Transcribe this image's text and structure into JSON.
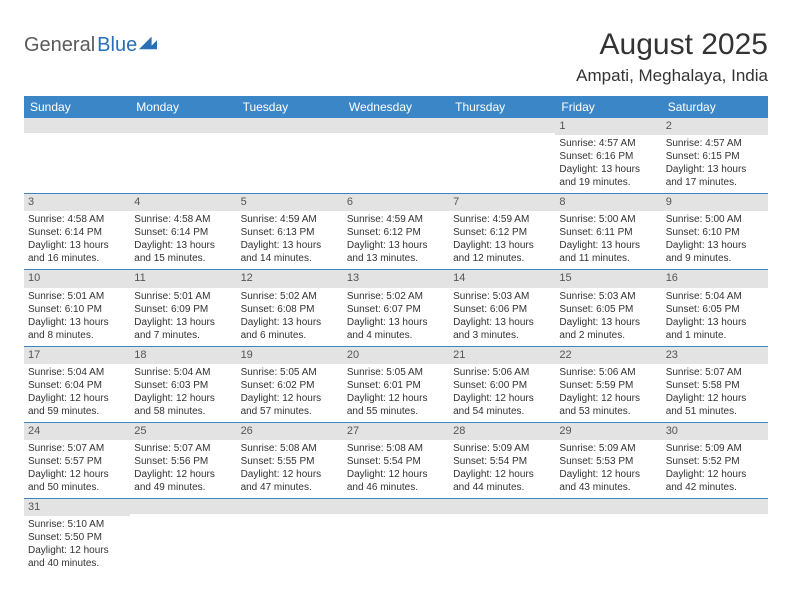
{
  "logo": {
    "word1": "General",
    "word2": "Blue"
  },
  "title": "August 2025",
  "location": "Ampati, Meghalaya, India",
  "colors": {
    "header_bg": "#3b86c6",
    "header_fg": "#ffffff",
    "daynum_bg": "#e3e3e3",
    "daynum_fg": "#555555",
    "rule": "#3b86c6",
    "logo_accent": "#2a6fb5",
    "logo_gray": "#5a5a5a"
  },
  "weekdays": [
    "Sunday",
    "Monday",
    "Tuesday",
    "Wednesday",
    "Thursday",
    "Friday",
    "Saturday"
  ],
  "weeks": [
    [
      {
        "n": "",
        "sr": "",
        "ss": "",
        "dl": ""
      },
      {
        "n": "",
        "sr": "",
        "ss": "",
        "dl": ""
      },
      {
        "n": "",
        "sr": "",
        "ss": "",
        "dl": ""
      },
      {
        "n": "",
        "sr": "",
        "ss": "",
        "dl": ""
      },
      {
        "n": "",
        "sr": "",
        "ss": "",
        "dl": ""
      },
      {
        "n": "1",
        "sr": "Sunrise: 4:57 AM",
        "ss": "Sunset: 6:16 PM",
        "dl": "Daylight: 13 hours and 19 minutes."
      },
      {
        "n": "2",
        "sr": "Sunrise: 4:57 AM",
        "ss": "Sunset: 6:15 PM",
        "dl": "Daylight: 13 hours and 17 minutes."
      }
    ],
    [
      {
        "n": "3",
        "sr": "Sunrise: 4:58 AM",
        "ss": "Sunset: 6:14 PM",
        "dl": "Daylight: 13 hours and 16 minutes."
      },
      {
        "n": "4",
        "sr": "Sunrise: 4:58 AM",
        "ss": "Sunset: 6:14 PM",
        "dl": "Daylight: 13 hours and 15 minutes."
      },
      {
        "n": "5",
        "sr": "Sunrise: 4:59 AM",
        "ss": "Sunset: 6:13 PM",
        "dl": "Daylight: 13 hours and 14 minutes."
      },
      {
        "n": "6",
        "sr": "Sunrise: 4:59 AM",
        "ss": "Sunset: 6:12 PM",
        "dl": "Daylight: 13 hours and 13 minutes."
      },
      {
        "n": "7",
        "sr": "Sunrise: 4:59 AM",
        "ss": "Sunset: 6:12 PM",
        "dl": "Daylight: 13 hours and 12 minutes."
      },
      {
        "n": "8",
        "sr": "Sunrise: 5:00 AM",
        "ss": "Sunset: 6:11 PM",
        "dl": "Daylight: 13 hours and 11 minutes."
      },
      {
        "n": "9",
        "sr": "Sunrise: 5:00 AM",
        "ss": "Sunset: 6:10 PM",
        "dl": "Daylight: 13 hours and 9 minutes."
      }
    ],
    [
      {
        "n": "10",
        "sr": "Sunrise: 5:01 AM",
        "ss": "Sunset: 6:10 PM",
        "dl": "Daylight: 13 hours and 8 minutes."
      },
      {
        "n": "11",
        "sr": "Sunrise: 5:01 AM",
        "ss": "Sunset: 6:09 PM",
        "dl": "Daylight: 13 hours and 7 minutes."
      },
      {
        "n": "12",
        "sr": "Sunrise: 5:02 AM",
        "ss": "Sunset: 6:08 PM",
        "dl": "Daylight: 13 hours and 6 minutes."
      },
      {
        "n": "13",
        "sr": "Sunrise: 5:02 AM",
        "ss": "Sunset: 6:07 PM",
        "dl": "Daylight: 13 hours and 4 minutes."
      },
      {
        "n": "14",
        "sr": "Sunrise: 5:03 AM",
        "ss": "Sunset: 6:06 PM",
        "dl": "Daylight: 13 hours and 3 minutes."
      },
      {
        "n": "15",
        "sr": "Sunrise: 5:03 AM",
        "ss": "Sunset: 6:05 PM",
        "dl": "Daylight: 13 hours and 2 minutes."
      },
      {
        "n": "16",
        "sr": "Sunrise: 5:04 AM",
        "ss": "Sunset: 6:05 PM",
        "dl": "Daylight: 13 hours and 1 minute."
      }
    ],
    [
      {
        "n": "17",
        "sr": "Sunrise: 5:04 AM",
        "ss": "Sunset: 6:04 PM",
        "dl": "Daylight: 12 hours and 59 minutes."
      },
      {
        "n": "18",
        "sr": "Sunrise: 5:04 AM",
        "ss": "Sunset: 6:03 PM",
        "dl": "Daylight: 12 hours and 58 minutes."
      },
      {
        "n": "19",
        "sr": "Sunrise: 5:05 AM",
        "ss": "Sunset: 6:02 PM",
        "dl": "Daylight: 12 hours and 57 minutes."
      },
      {
        "n": "20",
        "sr": "Sunrise: 5:05 AM",
        "ss": "Sunset: 6:01 PM",
        "dl": "Daylight: 12 hours and 55 minutes."
      },
      {
        "n": "21",
        "sr": "Sunrise: 5:06 AM",
        "ss": "Sunset: 6:00 PM",
        "dl": "Daylight: 12 hours and 54 minutes."
      },
      {
        "n": "22",
        "sr": "Sunrise: 5:06 AM",
        "ss": "Sunset: 5:59 PM",
        "dl": "Daylight: 12 hours and 53 minutes."
      },
      {
        "n": "23",
        "sr": "Sunrise: 5:07 AM",
        "ss": "Sunset: 5:58 PM",
        "dl": "Daylight: 12 hours and 51 minutes."
      }
    ],
    [
      {
        "n": "24",
        "sr": "Sunrise: 5:07 AM",
        "ss": "Sunset: 5:57 PM",
        "dl": "Daylight: 12 hours and 50 minutes."
      },
      {
        "n": "25",
        "sr": "Sunrise: 5:07 AM",
        "ss": "Sunset: 5:56 PM",
        "dl": "Daylight: 12 hours and 49 minutes."
      },
      {
        "n": "26",
        "sr": "Sunrise: 5:08 AM",
        "ss": "Sunset: 5:55 PM",
        "dl": "Daylight: 12 hours and 47 minutes."
      },
      {
        "n": "27",
        "sr": "Sunrise: 5:08 AM",
        "ss": "Sunset: 5:54 PM",
        "dl": "Daylight: 12 hours and 46 minutes."
      },
      {
        "n": "28",
        "sr": "Sunrise: 5:09 AM",
        "ss": "Sunset: 5:54 PM",
        "dl": "Daylight: 12 hours and 44 minutes."
      },
      {
        "n": "29",
        "sr": "Sunrise: 5:09 AM",
        "ss": "Sunset: 5:53 PM",
        "dl": "Daylight: 12 hours and 43 minutes."
      },
      {
        "n": "30",
        "sr": "Sunrise: 5:09 AM",
        "ss": "Sunset: 5:52 PM",
        "dl": "Daylight: 12 hours and 42 minutes."
      }
    ],
    [
      {
        "n": "31",
        "sr": "Sunrise: 5:10 AM",
        "ss": "Sunset: 5:50 PM",
        "dl": "Daylight: 12 hours and 40 minutes."
      },
      {
        "n": "",
        "sr": "",
        "ss": "",
        "dl": ""
      },
      {
        "n": "",
        "sr": "",
        "ss": "",
        "dl": ""
      },
      {
        "n": "",
        "sr": "",
        "ss": "",
        "dl": ""
      },
      {
        "n": "",
        "sr": "",
        "ss": "",
        "dl": ""
      },
      {
        "n": "",
        "sr": "",
        "ss": "",
        "dl": ""
      },
      {
        "n": "",
        "sr": "",
        "ss": "",
        "dl": ""
      }
    ]
  ]
}
